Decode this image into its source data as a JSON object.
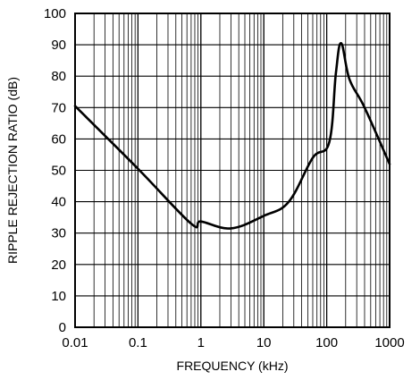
{
  "chart_data": {
    "type": "line",
    "title": "",
    "xlabel": "FREQUENCY (kHz)",
    "ylabel": "RIPPLE REJECTION RATIO (dB)",
    "x_scale": "log",
    "xlim": [
      0.01,
      1000
    ],
    "ylim": [
      0,
      100
    ],
    "grid": true,
    "x_ticks": [
      "0.01",
      "0.1",
      "1",
      "10",
      "100",
      "1000"
    ],
    "y_ticks": [
      "0",
      "10",
      "20",
      "30",
      "40",
      "50",
      "60",
      "70",
      "80",
      "90",
      "100"
    ],
    "series": [
      {
        "x": [
          0.01,
          0.1,
          0.7,
          1.0,
          3.0,
          10,
          25,
          60,
          110,
          140,
          170,
          230,
          400,
          1000
        ],
        "y": [
          70.5,
          50.5,
          33,
          33.7,
          31.5,
          35.5,
          40,
          54,
          59,
          81,
          90.5,
          79,
          70,
          52
        ]
      }
    ]
  }
}
